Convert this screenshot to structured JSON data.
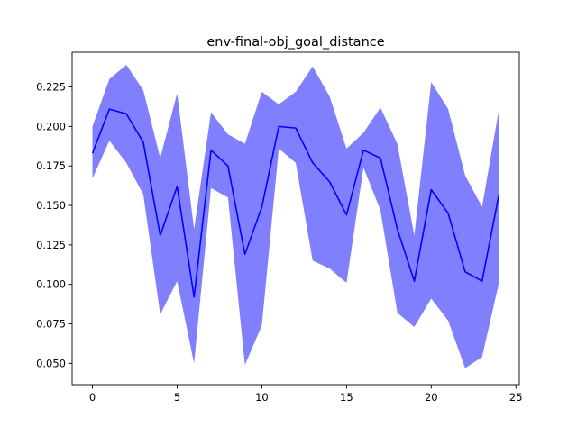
{
  "chart_data": {
    "type": "line",
    "title": "env-final-obj_goal_distance",
    "xlabel": "",
    "ylabel": "",
    "xlim": [
      -1.2,
      25.2
    ],
    "ylim": [
      0.0365,
      0.247
    ],
    "xticks": [
      0,
      5,
      10,
      15,
      20,
      25
    ],
    "xtick_labels": [
      "0",
      "5",
      "10",
      "15",
      "20",
      "25"
    ],
    "yticks": [
      0.05,
      0.075,
      0.1,
      0.125,
      0.15,
      0.175,
      0.2,
      0.225
    ],
    "ytick_labels": [
      "0.050",
      "0.075",
      "0.100",
      "0.125",
      "0.150",
      "0.175",
      "0.200",
      "0.225"
    ],
    "grid": false,
    "x": [
      0,
      1,
      2,
      3,
      4,
      5,
      6,
      7,
      8,
      9,
      10,
      11,
      12,
      13,
      14,
      15,
      16,
      17,
      18,
      19,
      20,
      21,
      22,
      23,
      24
    ],
    "series": [
      {
        "color": "#0000ff",
        "values": [
          0.183,
          0.211,
          0.208,
          0.19,
          0.131,
          0.162,
          0.092,
          0.185,
          0.175,
          0.119,
          0.149,
          0.2,
          0.199,
          0.177,
          0.165,
          0.144,
          0.185,
          0.18,
          0.135,
          0.102,
          0.16,
          0.145,
          0.108,
          0.102,
          0.157
        ],
        "band_upper": [
          0.2,
          0.23,
          0.239,
          0.223,
          0.18,
          0.221,
          0.135,
          0.209,
          0.195,
          0.189,
          0.222,
          0.214,
          0.222,
          0.238,
          0.219,
          0.186,
          0.196,
          0.212,
          0.189,
          0.131,
          0.228,
          0.211,
          0.169,
          0.149,
          0.211
        ],
        "band_lower": [
          0.167,
          0.191,
          0.177,
          0.157,
          0.081,
          0.102,
          0.05,
          0.161,
          0.155,
          0.049,
          0.074,
          0.186,
          0.177,
          0.115,
          0.11,
          0.101,
          0.174,
          0.147,
          0.082,
          0.073,
          0.091,
          0.077,
          0.047,
          0.054,
          0.101
        ],
        "band_color": "#8080ff"
      }
    ]
  }
}
